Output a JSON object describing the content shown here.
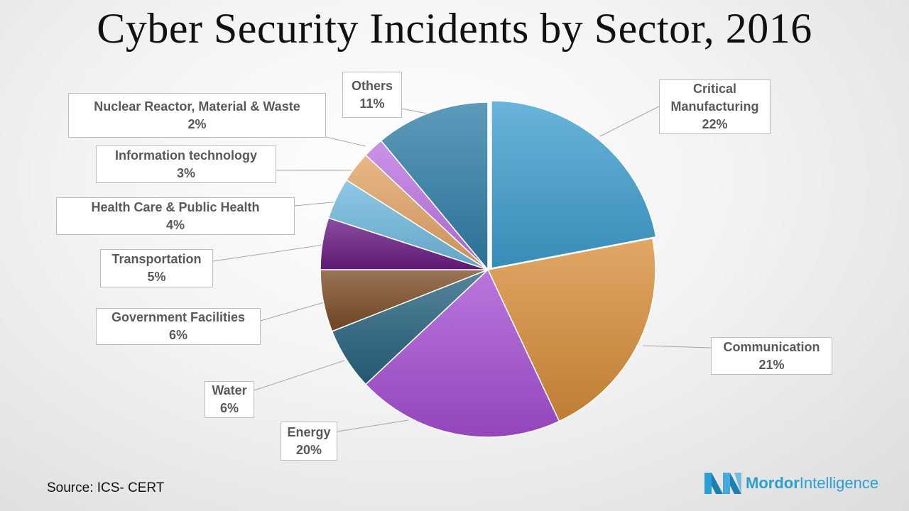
{
  "title": "Cyber Security Incidents by Sector, 2016",
  "source": "Source: ICS- CERT",
  "brand": {
    "name_bold": "Mordor",
    "name_light": "Intelligence",
    "logo_icon": "mordor-logo-icon"
  },
  "colors": {
    "brand": "#2a9fd6",
    "label_border": "#bdbdbd",
    "label_text": "#595959"
  },
  "chart_data": {
    "type": "pie",
    "title": "Cyber Security Incidents by Sector, 2016",
    "start": "12 o'clock",
    "direction": "clockwise",
    "exploded_slice": "Critical Manufacturing",
    "legend": "none",
    "slices": [
      {
        "label_lines": [
          "Critical",
          "Manufacturing"
        ],
        "name": "Critical Manufacturing",
        "value": 22,
        "value_label": "22%",
        "color": "#3f9fd0"
      },
      {
        "label_lines": [
          "Communication"
        ],
        "name": "Communication",
        "value": 21,
        "value_label": "21%",
        "color": "#d98e3a"
      },
      {
        "label_lines": [
          "Energy"
        ],
        "name": "Energy",
        "value": 20,
        "value_label": "20%",
        "color": "#a64fd3"
      },
      {
        "label_lines": [
          "Water"
        ],
        "name": "Water",
        "value": 6,
        "value_label": "6%",
        "color": "#25637f"
      },
      {
        "label_lines": [
          "Government Facilities"
        ],
        "name": "Government Facilities",
        "value": 6,
        "value_label": "6%",
        "color": "#7d4d26"
      },
      {
        "label_lines": [
          "Transportation"
        ],
        "name": "Transportation",
        "value": 5,
        "value_label": "5%",
        "color": "#6a1c83"
      },
      {
        "label_lines": [
          "Health Care & Public Health"
        ],
        "name": "Health Care & Public Health",
        "value": 4,
        "value_label": "4%",
        "color": "#6fbadf"
      },
      {
        "label_lines": [
          "Information technology"
        ],
        "name": "Information technology",
        "value": 3,
        "value_label": "3%",
        "color": "#e3a465"
      },
      {
        "label_lines": [
          "Nuclear Reactor, Material & Waste"
        ],
        "name": "Nuclear Reactor, Material & Waste",
        "value": 2,
        "value_label": "2%",
        "color": "#be74e4"
      },
      {
        "label_lines": [
          "Others"
        ],
        "name": "Others",
        "value": 11,
        "value_label": "11%",
        "color": "#2f7fa8"
      }
    ]
  }
}
